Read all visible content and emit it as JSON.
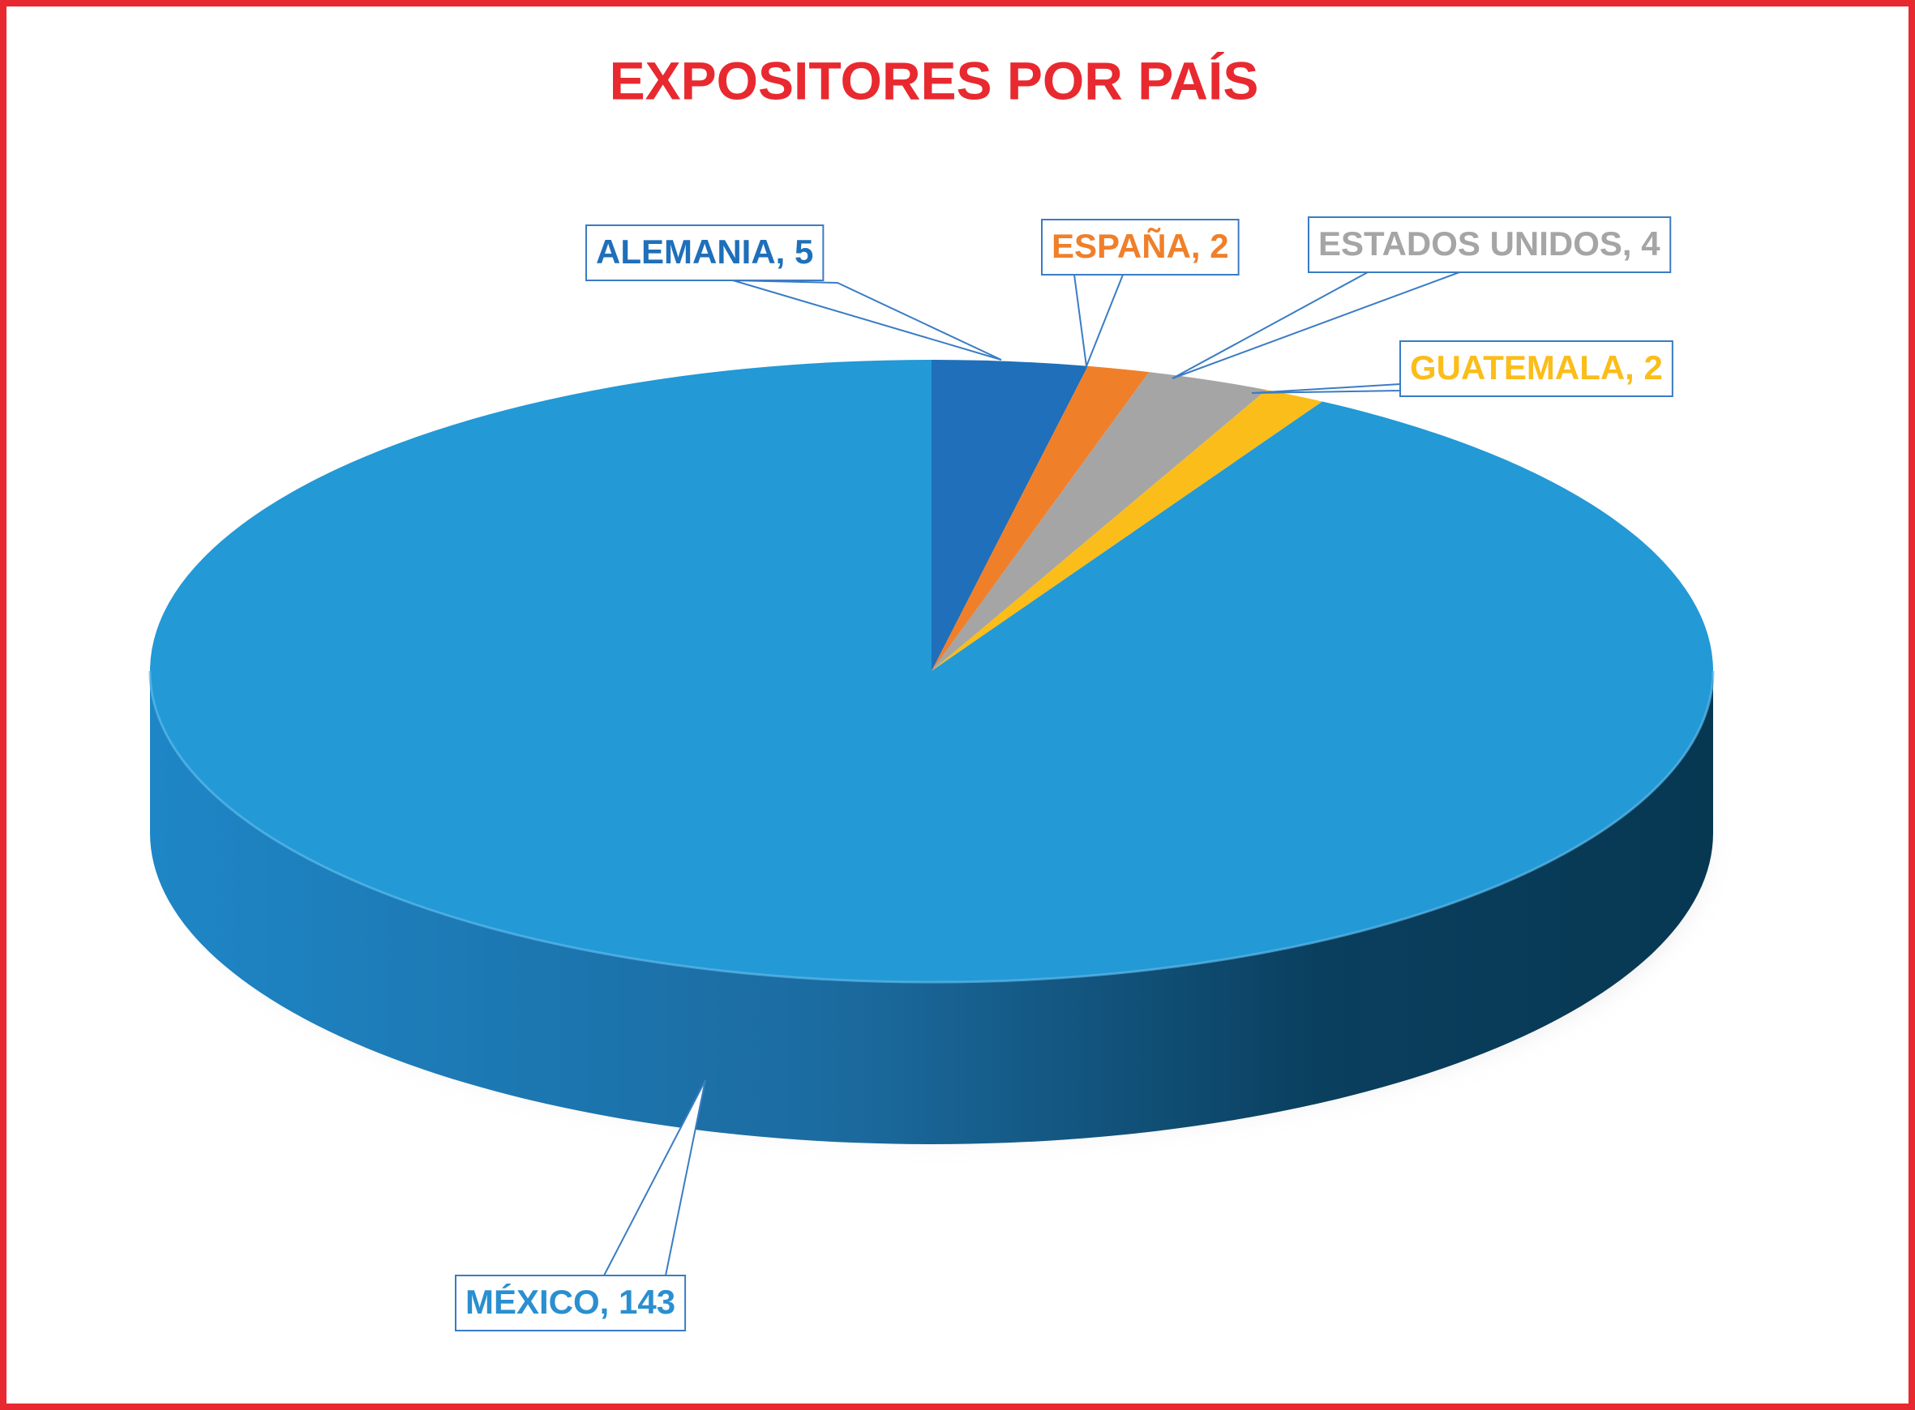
{
  "chart_data": {
    "type": "pie",
    "title": "EXPOSITORES POR PAÍS",
    "values": [
      5,
      2,
      4,
      2,
      143
    ],
    "value_labels": [
      "ALEMANIA, 5",
      "ESPAÑA, 2",
      "ESTADOS UNIDOS, 4",
      "GUATEMALA, 2",
      "MÉXICO, 143"
    ],
    "colors": [
      "#1f6fba",
      "#f07f2a",
      "#a5a5a5",
      "#fbbd1a",
      "#2399d6"
    ]
  }
}
